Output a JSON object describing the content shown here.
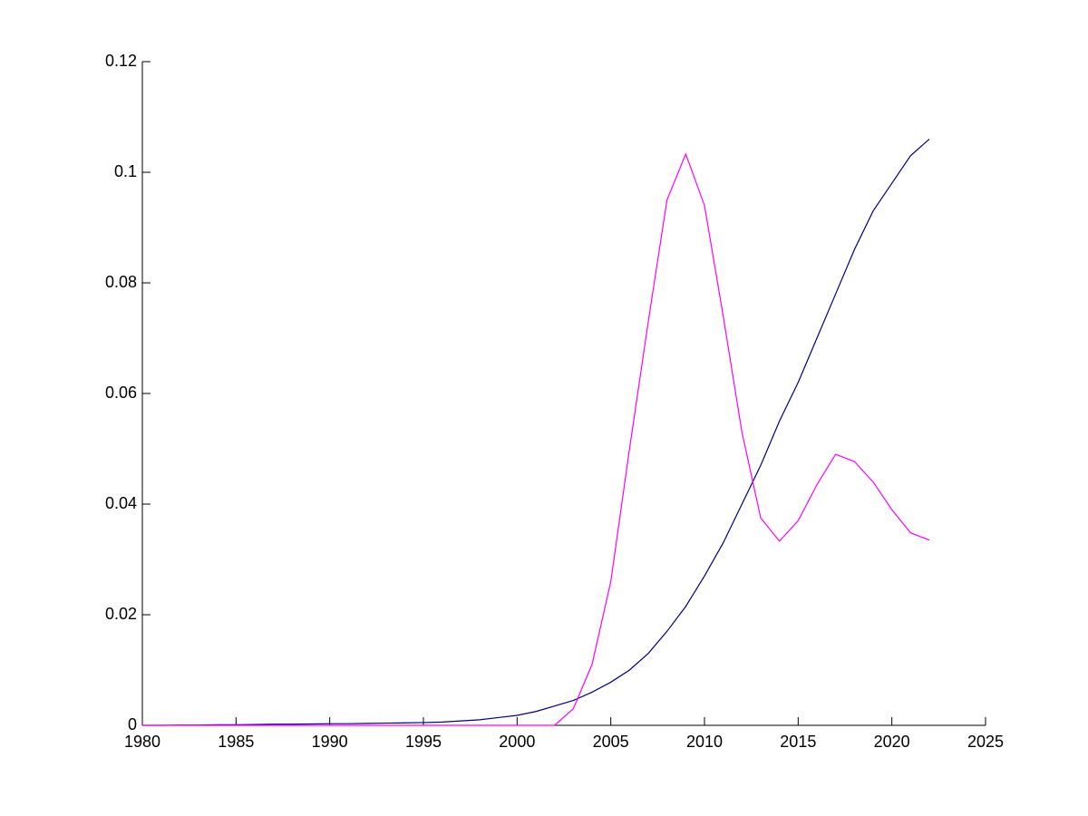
{
  "chart_data": {
    "type": "line",
    "x": [
      1980,
      1981,
      1982,
      1983,
      1984,
      1985,
      1986,
      1987,
      1988,
      1989,
      1990,
      1991,
      1992,
      1993,
      1994,
      1995,
      1996,
      1997,
      1998,
      1999,
      2000,
      2001,
      2002,
      2003,
      2004,
      2005,
      2006,
      2007,
      2008,
      2009,
      2010,
      2011,
      2012,
      2013,
      2014,
      2015,
      2016,
      2017,
      2018,
      2019,
      2020,
      2021,
      2022
    ],
    "series": [
      {
        "color": "#000080",
        "values": [
          0,
          0,
          5e-05,
          5e-05,
          0.0001,
          0.0001,
          0.00015,
          0.0002,
          0.0002,
          0.00025,
          0.0003,
          0.0003,
          0.00035,
          0.0004,
          0.00045,
          0.0005,
          0.0006,
          0.0008,
          0.001,
          0.0014,
          0.0018,
          0.0025,
          0.0035,
          0.0045,
          0.006,
          0.0078,
          0.01,
          0.013,
          0.017,
          0.0215,
          0.027,
          0.033,
          0.04,
          0.047,
          0.055,
          0.062,
          0.07,
          0.078,
          0.086,
          0.093,
          0.098,
          0.103,
          0.106
        ]
      },
      {
        "color": "#ff00ff",
        "values": [
          0,
          0,
          0,
          0,
          0,
          0,
          0,
          0,
          0,
          0,
          0,
          0,
          0,
          0,
          0,
          0,
          0,
          0,
          0,
          0,
          0,
          0,
          0,
          0.003,
          0.011,
          0.026,
          0.05,
          0.073,
          0.095,
          0.1033,
          0.094,
          0.074,
          0.053,
          0.0375,
          0.0333,
          0.037,
          0.0435,
          0.049,
          0.0477,
          0.044,
          0.039,
          0.0348,
          0.0335
        ]
      }
    ],
    "xlim": [
      1980,
      2025
    ],
    "xticks": [
      1980,
      1985,
      1990,
      1995,
      2000,
      2005,
      2010,
      2015,
      2020,
      2025
    ],
    "ylim": [
      0,
      0.12
    ],
    "yticks": [
      0,
      0.02,
      0.04,
      0.06,
      0.08,
      0.1,
      0.12
    ]
  }
}
